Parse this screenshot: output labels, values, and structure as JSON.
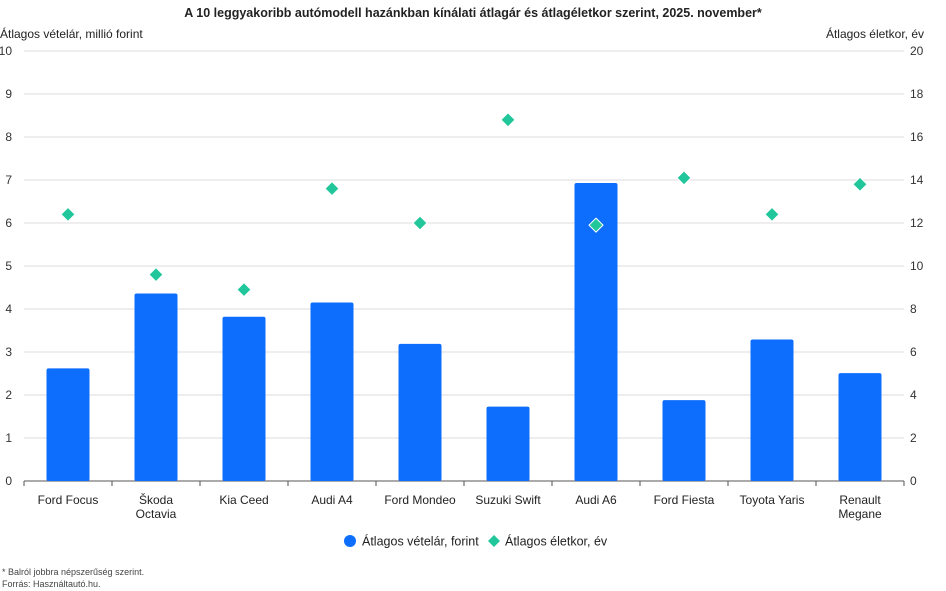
{
  "chart_data": {
    "type": "bar",
    "title": "A 10 leggyakoribb autómodell hazánkban kínálati átlagár és átlagéletkor szerint, 2025. november*",
    "ylabel_left": "Átlagos vételár, millió forint",
    "ylabel_right": "Átlagos életkor, év",
    "ylim_left": [
      0,
      10
    ],
    "ylim_right": [
      0,
      20
    ],
    "yticks_left": [
      0,
      1,
      2,
      3,
      4,
      5,
      6,
      7,
      8,
      9,
      10
    ],
    "yticks_right": [
      0,
      2,
      4,
      6,
      8,
      10,
      12,
      14,
      16,
      18,
      20
    ],
    "grid": true,
    "legend_position": "bottom",
    "categories": [
      [
        "Ford Focus"
      ],
      [
        "Škoda",
        "Octavia"
      ],
      [
        "Kia Ceed"
      ],
      [
        "Audi A4"
      ],
      [
        "Ford Mondeo"
      ],
      [
        "Suzuki Swift"
      ],
      [
        "Audi A6"
      ],
      [
        "Ford Fiesta"
      ],
      [
        "Toyota Yaris"
      ],
      [
        "Renault",
        "Megane"
      ]
    ],
    "series": [
      {
        "name": "Átlagos vételár, forint",
        "type": "bar",
        "axis": "left",
        "color": "#0d6efd",
        "values": [
          2.62,
          4.36,
          3.82,
          4.15,
          3.19,
          1.73,
          6.93,
          1.88,
          3.29,
          2.51
        ]
      },
      {
        "name": "Átlagos életkor, év",
        "type": "scatter",
        "marker": "diamond",
        "axis": "right",
        "color": "#21c79a",
        "values": [
          12.4,
          9.6,
          8.9,
          13.6,
          12.0,
          16.8,
          11.9,
          14.1,
          12.4,
          13.8
        ]
      }
    ]
  },
  "footnote": "* Balról jobbra népszerűség szerint.",
  "source": "Forrás: Használtautó.hu."
}
